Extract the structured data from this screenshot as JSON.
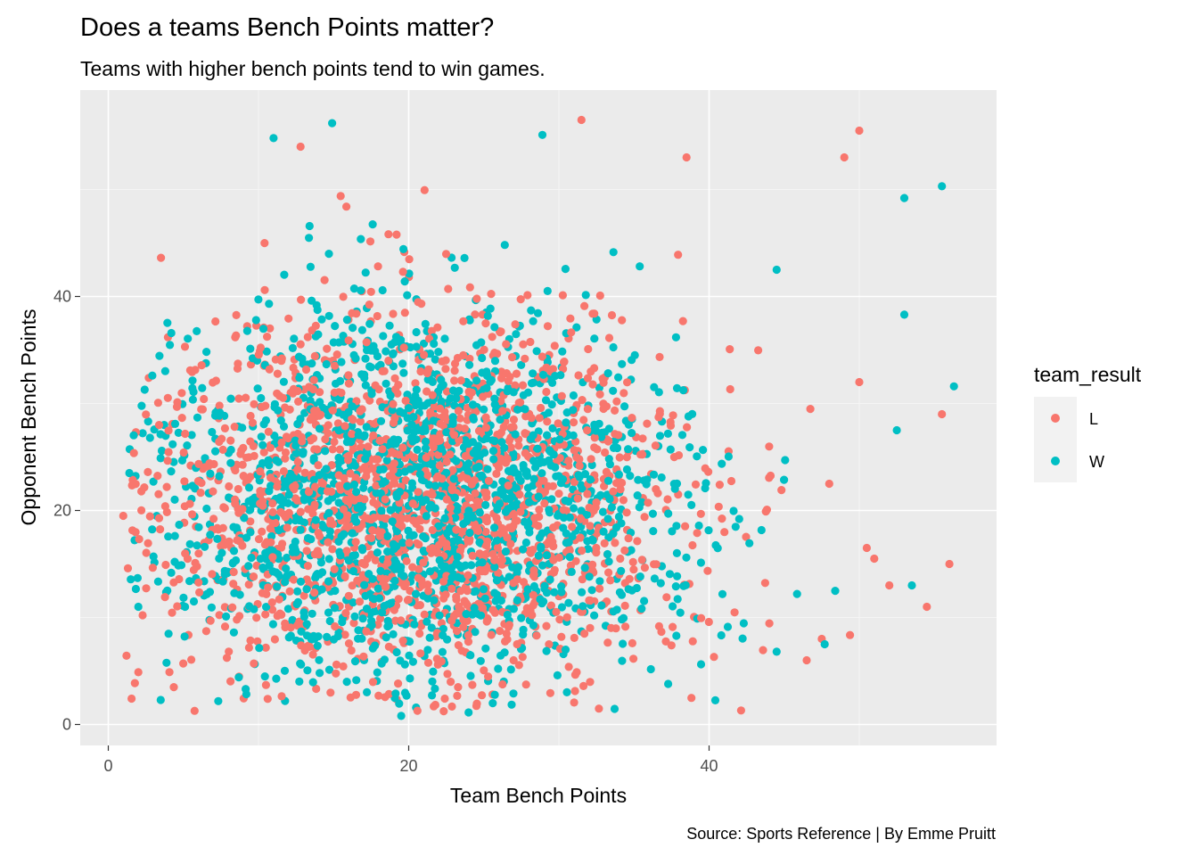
{
  "chart_data": {
    "type": "scatter",
    "title": "Does a teams Bench Points matter?",
    "subtitle": "Teams with higher bench points tend to win games.",
    "xlabel": "Team Bench Points",
    "ylabel": "Opponent Bench Points",
    "caption": "Source: Sports Reference | By Emme Pruitt",
    "xlim": [
      -2,
      59
    ],
    "ylim": [
      -2,
      59
    ],
    "x_ticks": [
      0,
      20,
      40
    ],
    "y_ticks": [
      0,
      20,
      40
    ],
    "x_tick_labels": [
      "0",
      "20",
      "40"
    ],
    "y_tick_labels": [
      "0",
      "20",
      "40"
    ],
    "grid": true,
    "legend": {
      "title": "team_result",
      "position": "right",
      "entries": [
        {
          "label": "L",
          "color": "#F8766D"
        },
        {
          "label": "W",
          "color": "#00BFC4"
        }
      ]
    },
    "distribution": {
      "x_center": 21,
      "x_spread": 9,
      "y_center": 21,
      "y_spread": 9,
      "x_range": [
        1,
        56
      ],
      "y_range": [
        1,
        56
      ]
    },
    "series": [
      {
        "name": "L",
        "color": "#F8766D",
        "outliers": [
          [
            1,
            19.5
          ],
          [
            31.5,
            56.5
          ],
          [
            50,
            55.5
          ],
          [
            49,
            53
          ],
          [
            38.5,
            53
          ],
          [
            12.8,
            54
          ],
          [
            55.5,
            29
          ],
          [
            56,
            15
          ],
          [
            54.5,
            11
          ],
          [
            52,
            13
          ],
          [
            50.5,
            16.5
          ],
          [
            46.5,
            6
          ],
          [
            47.5,
            8
          ],
          [
            51,
            15.5
          ],
          [
            48,
            22.5
          ],
          [
            50,
            32
          ]
        ]
      },
      {
        "name": "W",
        "color": "#00BFC4",
        "outliers": [
          [
            14.9,
            56.2
          ],
          [
            11,
            54.8
          ],
          [
            28.9,
            55.1
          ],
          [
            53,
            49.2
          ],
          [
            55.5,
            50.3
          ],
          [
            56.3,
            31.6
          ],
          [
            53,
            38.3
          ],
          [
            19.5,
            0.8
          ],
          [
            1.4,
            23.5
          ],
          [
            2,
            11
          ],
          [
            52.5,
            27.5
          ],
          [
            53.5,
            13
          ],
          [
            44.5,
            42.5
          ],
          [
            47.7,
            7.5
          ],
          [
            44.5,
            6.8
          ]
        ]
      }
    ]
  }
}
